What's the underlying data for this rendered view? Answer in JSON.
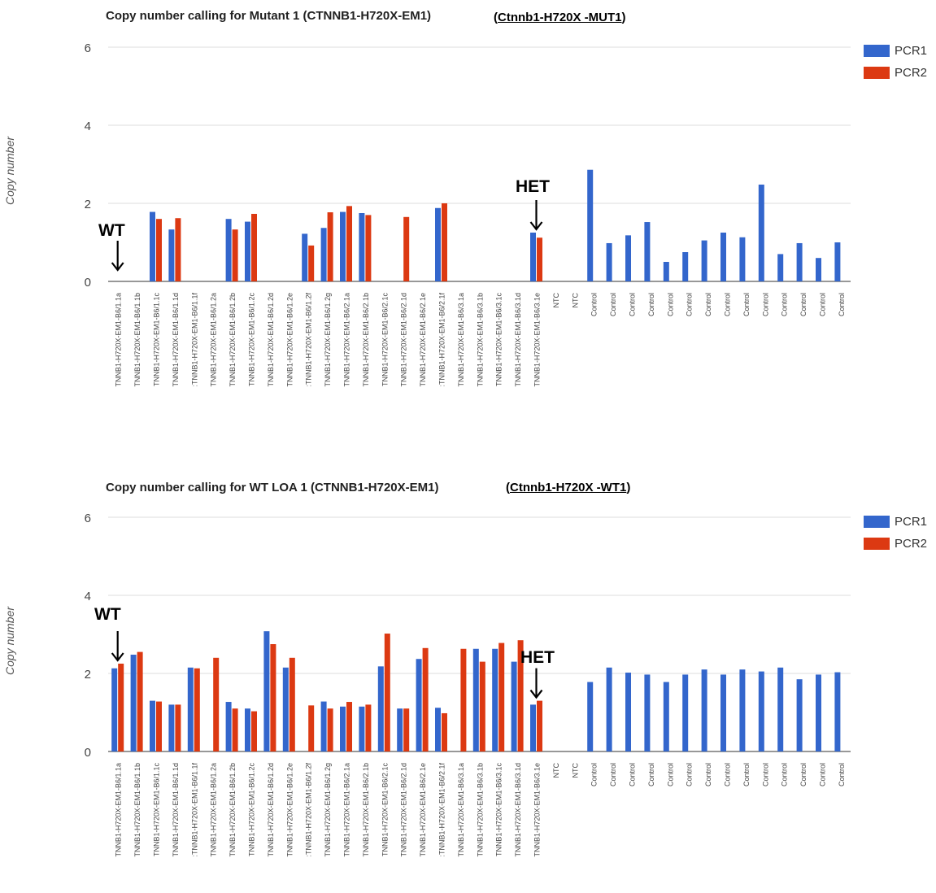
{
  "colors": {
    "pcr1": "#3366cc",
    "pcr2": "#dc3912",
    "grid": "#dddddd",
    "axis": "#777777"
  },
  "chart_data": [
    {
      "type": "bar",
      "title": "Copy number calling for Mutant 1 (CTNNB1-H720X-EM1)",
      "subtitle_prefix": "(",
      "subtitle": "Ctnnb1-H720X -MUT1",
      "subtitle_suffix": ")",
      "ylabel": "Copy number",
      "ylim": [
        0,
        6
      ],
      "yticks": [
        "0",
        "2",
        "4",
        "6"
      ],
      "legend": "right",
      "grid": true,
      "categories": [
        "TNNB1-H720X-EM1-B6/1.1a",
        "TNNB1-H720X-EM1-B6/1.1b",
        "TNNB1-H720X-EM1-B6/1.1c",
        "TNNB1-H720X-EM1-B6/1.1d",
        ":TNNB1-H720X-EM1-B6/1.1f",
        "TNNB1-H720X-EM1-B6/1.2a",
        "TNNB1-H720X-EM1-B6/1.2b",
        "TNNB1-H720X-EM1-B6/1.2c",
        "TNNB1-H720X-EM1-B6/1.2d",
        "TNNB1-H720X-EM1-B6/1.2e",
        ":TNNB1-H720X-EM1-B6/1.2f",
        "TNNB1-H720X-EM1-B6/1.2g",
        "TNNB1-H720X-EM1-B6/2.1a",
        "TNNB1-H720X-EM1-B6/2.1b",
        "TNNB1-H720X-EM1-B6/2.1c",
        "TNNB1-H720X-EM1-B6/2.1d",
        "TNNB1-H720X-EM1-B6/2.1e",
        ":TNNB1-H720X-EM1-B6/2.1f",
        "TNNB1-H720X-EM1-B6/3.1a",
        "TNNB1-H720X-EM1-B6/3.1b",
        "TNNB1-H720X-EM1-B6/3.1c",
        "TNNB1-H720X-EM1-B6/3.1d",
        "TNNB1-H720X-EM1-B6/3.1e",
        "NTC",
        "NTC",
        "Control",
        "Control",
        "Control",
        "Control",
        "Control",
        "Control",
        "Control",
        "Control",
        "Control",
        "Control",
        "Control",
        "Control",
        "Control",
        "Control"
      ],
      "series": [
        {
          "name": "PCR1",
          "values": [
            0,
            0,
            1.78,
            1.33,
            0,
            0,
            1.6,
            1.53,
            0,
            0,
            1.22,
            1.37,
            1.78,
            1.75,
            0,
            0,
            0,
            1.88,
            0,
            0,
            0,
            0,
            1.25,
            0,
            0,
            2.86,
            0.98,
            1.18,
            1.52,
            0.5,
            0.75,
            1.05,
            1.25,
            1.13,
            2.48,
            0.7,
            0.98,
            0.6,
            1.0
          ]
        },
        {
          "name": "PCR2",
          "values": [
            0,
            0,
            1.6,
            1.62,
            0,
            0,
            1.33,
            1.73,
            0,
            0,
            0.92,
            1.77,
            1.93,
            1.7,
            0,
            1.65,
            0,
            2.0,
            0,
            0,
            0,
            0,
            1.12,
            0,
            0,
            null,
            null,
            null,
            null,
            null,
            null,
            null,
            null,
            null,
            null,
            null,
            null,
            null,
            null
          ]
        }
      ],
      "annotations": [
        {
          "text": "WT",
          "category_index": 0
        },
        {
          "text": "HET",
          "category_index": 22
        }
      ]
    },
    {
      "type": "bar",
      "title": "Copy number calling for WT LOA 1 (CTNNB1-H720X-EM1)",
      "subtitle_prefix": "(",
      "subtitle": "Ctnnb1-H720X -WT1",
      "subtitle_suffix": ")",
      "ylabel": "Copy number",
      "ylim": [
        0,
        6
      ],
      "yticks": [
        "0",
        "2",
        "4",
        "6"
      ],
      "legend": "right",
      "grid": true,
      "categories": [
        "TNNB1-H720X-EM1-B6/1.1a",
        "TNNB1-H720X-EM1-B6/1.1b",
        "TNNB1-H720X-EM1-B6/1.1c",
        "TNNB1-H720X-EM1-B6/1.1d",
        ":TNNB1-H720X-EM1-B6/1.1f",
        "TNNB1-H720X-EM1-B6/1.2a",
        "TNNB1-H720X-EM1-B6/1.2b",
        "TNNB1-H720X-EM1-B6/1.2c",
        "TNNB1-H720X-EM1-B6/1.2d",
        "TNNB1-H720X-EM1-B6/1.2e",
        ":TNNB1-H720X-EM1-B6/1.2f",
        "TNNB1-H720X-EM1-B6/1.2g",
        "TNNB1-H720X-EM1-B6/2.1a",
        "TNNB1-H720X-EM1-B6/2.1b",
        "TNNB1-H720X-EM1-B6/2.1c",
        "TNNB1-H720X-EM1-B6/2.1d",
        "TNNB1-H720X-EM1-B6/2.1e",
        ":TNNB1-H720X-EM1-B6/2.1f",
        "TNNB1-H720X-EM1-B6/3.1a",
        "TNNB1-H720X-EM1-B6/3.1b",
        "TNNB1-H720X-EM1-B6/3.1c",
        "TNNB1-H720X-EM1-B6/3.1d",
        "TNNB1-H720X-EM1-B6/3.1e",
        "NTC",
        "NTC",
        "Control",
        "Control",
        "Control",
        "Control",
        "Control",
        "Control",
        "Control",
        "Control",
        "Control",
        "Control",
        "Control",
        "Control",
        "Control",
        "Control"
      ],
      "series": [
        {
          "name": "PCR1",
          "values": [
            2.13,
            2.48,
            1.3,
            1.2,
            2.15,
            0,
            1.27,
            1.1,
            3.08,
            2.15,
            0,
            1.28,
            1.15,
            1.15,
            2.18,
            1.1,
            2.37,
            1.12,
            0,
            2.63,
            2.63,
            2.3,
            1.2,
            0,
            0,
            1.78,
            2.15,
            2.02,
            1.97,
            1.78,
            1.97,
            2.1,
            1.97,
            2.1,
            2.05,
            2.15,
            1.85,
            1.97,
            2.03
          ]
        },
        {
          "name": "PCR2",
          "values": [
            2.25,
            2.55,
            1.28,
            1.2,
            2.13,
            2.4,
            1.1,
            1.03,
            2.75,
            2.4,
            1.18,
            1.1,
            1.27,
            1.2,
            3.02,
            1.1,
            2.65,
            0.98,
            2.63,
            2.3,
            2.78,
            2.85,
            1.3,
            0,
            0,
            null,
            null,
            null,
            null,
            null,
            null,
            null,
            null,
            null,
            null,
            null,
            null,
            null,
            null
          ]
        }
      ],
      "annotations": [
        {
          "text": "WT",
          "category_index": 0
        },
        {
          "text": "HET",
          "category_index": 22
        }
      ]
    }
  ]
}
